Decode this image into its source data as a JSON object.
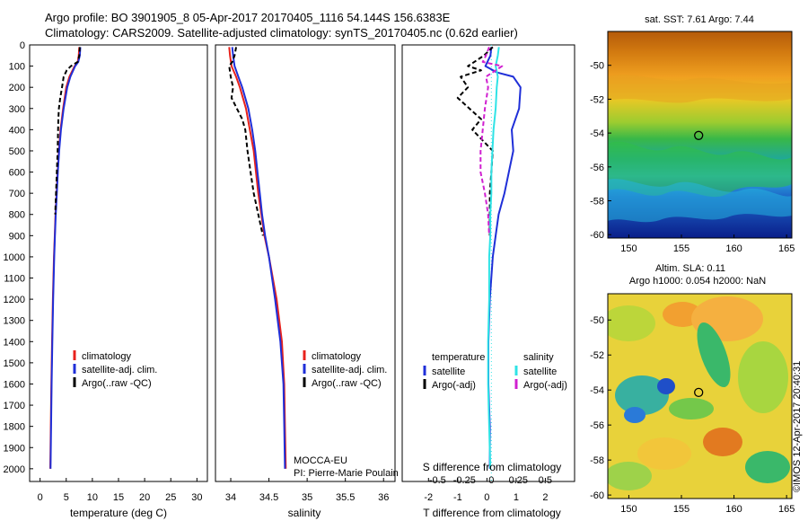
{
  "header": {
    "line1": "Argo profile: BO 3901905_8 05-Apr-2017 20170405_1116 54.144S 156.6383E",
    "line2": "Climatology: CARS2009. Satellite-adjusted climatology: synTS_20170405.nc (0.62d earlier)"
  },
  "colors": {
    "climatology": "#e8221c",
    "satellite": "#1f2fd8",
    "argo": "#000000",
    "sal_satellite": "#2fe3e6",
    "sal_argo": "#d020d0",
    "frame": "#000000"
  },
  "depth_ticks": [
    "0",
    "100",
    "200",
    "300",
    "400",
    "500",
    "600",
    "700",
    "800",
    "900",
    "1000",
    "1100",
    "1200",
    "1300",
    "1400",
    "1500",
    "1600",
    "1700",
    "1800",
    "1900",
    "2000"
  ],
  "chart_data": [
    {
      "id": "temperature",
      "type": "line",
      "xlabel": "temperature (deg C)",
      "xlim": [
        -2,
        32
      ],
      "ylim": [
        2060,
        0
      ],
      "xticks": [
        "0",
        "5",
        "10",
        "15",
        "20",
        "25",
        "30"
      ],
      "legend": [
        "climatology",
        "satellite-adj. clim.",
        "Argo(..raw -QC)"
      ],
      "series": [
        {
          "name": "climatology",
          "depth": [
            10,
            50,
            80,
            100,
            150,
            200,
            300,
            400,
            500,
            600,
            700,
            800,
            900,
            1000,
            1200,
            1400,
            1600,
            1800,
            2000
          ],
          "values": [
            7.5,
            7.4,
            7.2,
            6.6,
            5.6,
            5.0,
            4.4,
            3.9,
            3.6,
            3.35,
            3.15,
            2.95,
            2.8,
            2.65,
            2.45,
            2.3,
            2.15,
            2.05,
            1.95
          ]
        },
        {
          "name": "satellite-adj. clim.",
          "depth": [
            10,
            50,
            80,
            100,
            150,
            200,
            300,
            400,
            500,
            600,
            700,
            800,
            900,
            1000,
            1200,
            1400,
            1600,
            1800,
            2000
          ],
          "values": [
            7.7,
            7.6,
            7.3,
            6.7,
            5.8,
            5.2,
            4.5,
            4.0,
            3.65,
            3.4,
            3.2,
            3.0,
            2.85,
            2.7,
            2.5,
            2.35,
            2.2,
            2.1,
            2.0
          ]
        },
        {
          "name": "Argo(..raw -QC)",
          "depth": [
            10,
            50,
            80,
            100,
            120,
            150,
            200,
            250,
            300,
            350,
            400,
            500,
            600,
            700,
            800
          ],
          "values": [
            7.6,
            7.5,
            7.2,
            5.9,
            5.1,
            4.5,
            4.2,
            3.85,
            3.6,
            3.5,
            3.45,
            3.35,
            3.2,
            3.05,
            2.9
          ]
        }
      ]
    },
    {
      "id": "salinity",
      "type": "line",
      "xlabel": "salinity",
      "xlim": [
        33.8,
        36.15
      ],
      "ylim": [
        2060,
        0
      ],
      "xticks": [
        "34",
        "34.5",
        "35",
        "35.5",
        "36"
      ],
      "legend": [
        "climatology",
        "satellite-adj. clim.",
        "Argo(..raw -QC)"
      ],
      "annotations": [
        "MOCCA-EU",
        "PI: Pierre-Marie Poulain"
      ],
      "series": [
        {
          "name": "climatology",
          "depth": [
            10,
            50,
            100,
            150,
            200,
            300,
            400,
            500,
            600,
            700,
            800,
            900,
            1000,
            1200,
            1400,
            1600,
            1800,
            2000
          ],
          "values": [
            33.98,
            33.99,
            34.01,
            34.07,
            34.12,
            34.2,
            34.25,
            34.3,
            34.33,
            34.36,
            34.4,
            34.44,
            34.5,
            34.6,
            34.67,
            34.7,
            34.71,
            34.72
          ]
        },
        {
          "name": "satellite-adj. clim.",
          "depth": [
            10,
            50,
            100,
            150,
            200,
            300,
            400,
            500,
            600,
            700,
            800,
            900,
            1000,
            1200,
            1400,
            1600,
            1800,
            2000
          ],
          "values": [
            34.02,
            34.03,
            34.05,
            34.1,
            34.15,
            34.23,
            34.28,
            34.32,
            34.35,
            34.38,
            34.41,
            34.45,
            34.5,
            34.58,
            34.65,
            34.69,
            34.7,
            34.71
          ]
        },
        {
          "name": "Argo(..raw -QC)",
          "depth": [
            10,
            50,
            80,
            100,
            150,
            200,
            250,
            300,
            350,
            400,
            500,
            600,
            700,
            800,
            900
          ],
          "values": [
            34.07,
            34.05,
            34.02,
            33.98,
            34.0,
            34.03,
            34.01,
            34.08,
            34.15,
            34.19,
            34.22,
            34.26,
            34.3,
            34.36,
            34.42
          ]
        }
      ]
    },
    {
      "id": "difference",
      "type": "line",
      "xlabel": "T difference from climatology",
      "xlabel_top": "S difference from climatology",
      "xlim": [
        -2.9,
        3.0
      ],
      "ylim": [
        2060,
        0
      ],
      "xticks": [
        "-2",
        "-1",
        "0",
        "1",
        "2"
      ],
      "xticks_top": [
        "-0.5",
        "-0.25",
        "0",
        "0.25",
        "0.5"
      ],
      "legend_headers": [
        "temperature",
        "salinity"
      ],
      "legend": [
        "satellite",
        "Argo(-adj)",
        "satellite",
        "Argo(-adj)"
      ],
      "series": [
        {
          "name": "temperature satellite",
          "depth": [
            10,
            50,
            100,
            130,
            150,
            200,
            300,
            400,
            500,
            600,
            700,
            800,
            900,
            1000,
            1200,
            1400,
            1600,
            1800,
            2000
          ],
          "values": [
            0.15,
            0.12,
            -0.05,
            0.35,
            0.9,
            1.15,
            1.1,
            0.85,
            0.9,
            0.75,
            0.6,
            0.4,
            0.3,
            0.2,
            0.1,
            0.05,
            0.05,
            0.1,
            0.1
          ]
        },
        {
          "name": "temperature Argo(-adj)",
          "depth": [
            10,
            50,
            100,
            120,
            150,
            200,
            250,
            300,
            350,
            400,
            500,
            600,
            700,
            800,
            900
          ],
          "values": [
            0.2,
            -0.1,
            -0.65,
            -0.2,
            -0.9,
            -0.65,
            -1.0,
            -0.6,
            -0.2,
            -0.5,
            0.2,
            0.15,
            0.1,
            0.1,
            0.1
          ]
        },
        {
          "name": "salinity satellite",
          "depth": [
            10,
            50,
            100,
            150,
            200,
            300,
            400,
            500,
            600,
            700,
            800,
            900,
            1000,
            1200,
            1400,
            1600,
            1800,
            2000
          ],
          "values": [
            0.07,
            0.06,
            0.04,
            0.06,
            0.05,
            0.04,
            0.02,
            0.01,
            0.0,
            0.0,
            -0.01,
            -0.01,
            -0.02,
            -0.02,
            -0.03,
            -0.03,
            -0.02,
            -0.01
          ]
        },
        {
          "name": "salinity Argo(-adj)",
          "depth": [
            10,
            50,
            80,
            100,
            150,
            200,
            300,
            400,
            500,
            600,
            700,
            800,
            900
          ],
          "values": [
            -0.02,
            -0.05,
            -0.08,
            0.1,
            -0.05,
            -0.03,
            -0.06,
            -0.08,
            -0.1,
            -0.1,
            -0.06,
            -0.03,
            -0.02
          ]
        }
      ]
    },
    {
      "id": "sst_map",
      "type": "heatmap",
      "title": "sat. SST: 7.61  Argo: 7.44",
      "xlim": [
        148,
        165.5
      ],
      "ylim": [
        -60.2,
        -48
      ],
      "xticks": [
        "150",
        "155",
        "160",
        "165"
      ],
      "yticks": [
        "-50",
        "-52",
        "-54",
        "-56",
        "-58",
        "-60"
      ],
      "float_position": [
        156.64,
        -54.14
      ]
    },
    {
      "id": "sla_map",
      "type": "heatmap",
      "title": "Altim. SLA: 0.11",
      "subtitle": "Argo h1000: 0.054 h2000: NaN",
      "xlim": [
        148,
        165.5
      ],
      "ylim": [
        -60.2,
        -48.5
      ],
      "xticks": [
        "150",
        "155",
        "160",
        "165"
      ],
      "yticks": [
        "-50",
        "-52",
        "-54",
        "-56",
        "-58",
        "-60"
      ],
      "float_position": [
        156.64,
        -54.14
      ],
      "credit": "©IMOS 12-Apr-2017 20:40:31"
    }
  ]
}
